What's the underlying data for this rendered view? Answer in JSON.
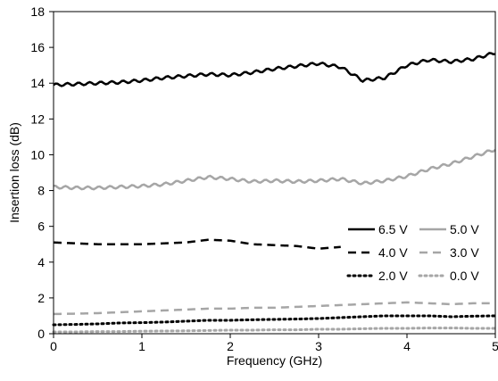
{
  "chart_data": {
    "type": "line",
    "title": "",
    "xlabel": "Frequency (GHz)",
    "ylabel": "Insertion loss (dB)",
    "xlim": [
      0,
      5
    ],
    "ylim": [
      0,
      18
    ],
    "x_ticks": [
      "0",
      "1",
      "2",
      "3",
      "4",
      "5"
    ],
    "y_ticks": [
      "0",
      "2",
      "4",
      "6",
      "8",
      "10",
      "12",
      "14",
      "16",
      "18"
    ],
    "grid": false,
    "legend_placement": "bottom-right",
    "x": [
      0,
      0.25,
      0.5,
      0.75,
      1.0,
      1.25,
      1.5,
      1.75,
      2.0,
      2.25,
      2.5,
      2.75,
      3.0,
      3.25,
      3.5,
      3.75,
      4.0,
      4.25,
      4.5,
      4.75,
      5.0
    ],
    "series": [
      {
        "name": "6.5 V",
        "color": "#000000",
        "dash": "solid",
        "values": [
          13.9,
          13.95,
          14.0,
          14.05,
          14.15,
          14.3,
          14.4,
          14.5,
          14.45,
          14.6,
          14.8,
          14.95,
          15.1,
          14.9,
          14.15,
          14.3,
          15.0,
          15.3,
          15.2,
          15.35,
          15.7
        ]
      },
      {
        "name": "5.0 V",
        "color": "#a6a6a6",
        "dash": "solid",
        "values": [
          8.2,
          8.15,
          8.15,
          8.2,
          8.25,
          8.35,
          8.55,
          8.75,
          8.65,
          8.5,
          8.55,
          8.5,
          8.55,
          8.65,
          8.4,
          8.55,
          8.8,
          9.2,
          9.5,
          9.9,
          10.3
        ]
      },
      {
        "name": "4.0 V",
        "color": "#000000",
        "dash": "dash",
        "values": [
          5.1,
          5.05,
          5.0,
          5.0,
          5.0,
          5.05,
          5.1,
          5.25,
          5.2,
          5.0,
          4.95,
          4.9,
          4.75,
          4.85,
          null,
          null,
          null,
          null,
          null,
          null,
          null
        ]
      },
      {
        "name": "3.0 V",
        "color": "#a6a6a6",
        "dash": "dash",
        "values": [
          1.1,
          1.12,
          1.15,
          1.2,
          1.25,
          1.3,
          1.35,
          1.4,
          1.4,
          1.45,
          1.45,
          1.5,
          1.55,
          1.6,
          1.65,
          1.7,
          1.75,
          1.7,
          1.65,
          1.7,
          1.7
        ]
      },
      {
        "name": "2.0 V",
        "color": "#000000",
        "dash": "dot",
        "values": [
          0.5,
          0.52,
          0.55,
          0.6,
          0.62,
          0.65,
          0.7,
          0.75,
          0.75,
          0.78,
          0.8,
          0.82,
          0.85,
          0.9,
          0.95,
          1.0,
          1.0,
          1.0,
          0.95,
          0.98,
          1.0
        ]
      },
      {
        "name": "0.0 V",
        "color": "#a6a6a6",
        "dash": "dot",
        "values": [
          0.1,
          0.1,
          0.12,
          0.12,
          0.14,
          0.15,
          0.16,
          0.18,
          0.2,
          0.2,
          0.22,
          0.22,
          0.25,
          0.25,
          0.28,
          0.3,
          0.3,
          0.32,
          0.32,
          0.3,
          0.3
        ]
      }
    ]
  }
}
